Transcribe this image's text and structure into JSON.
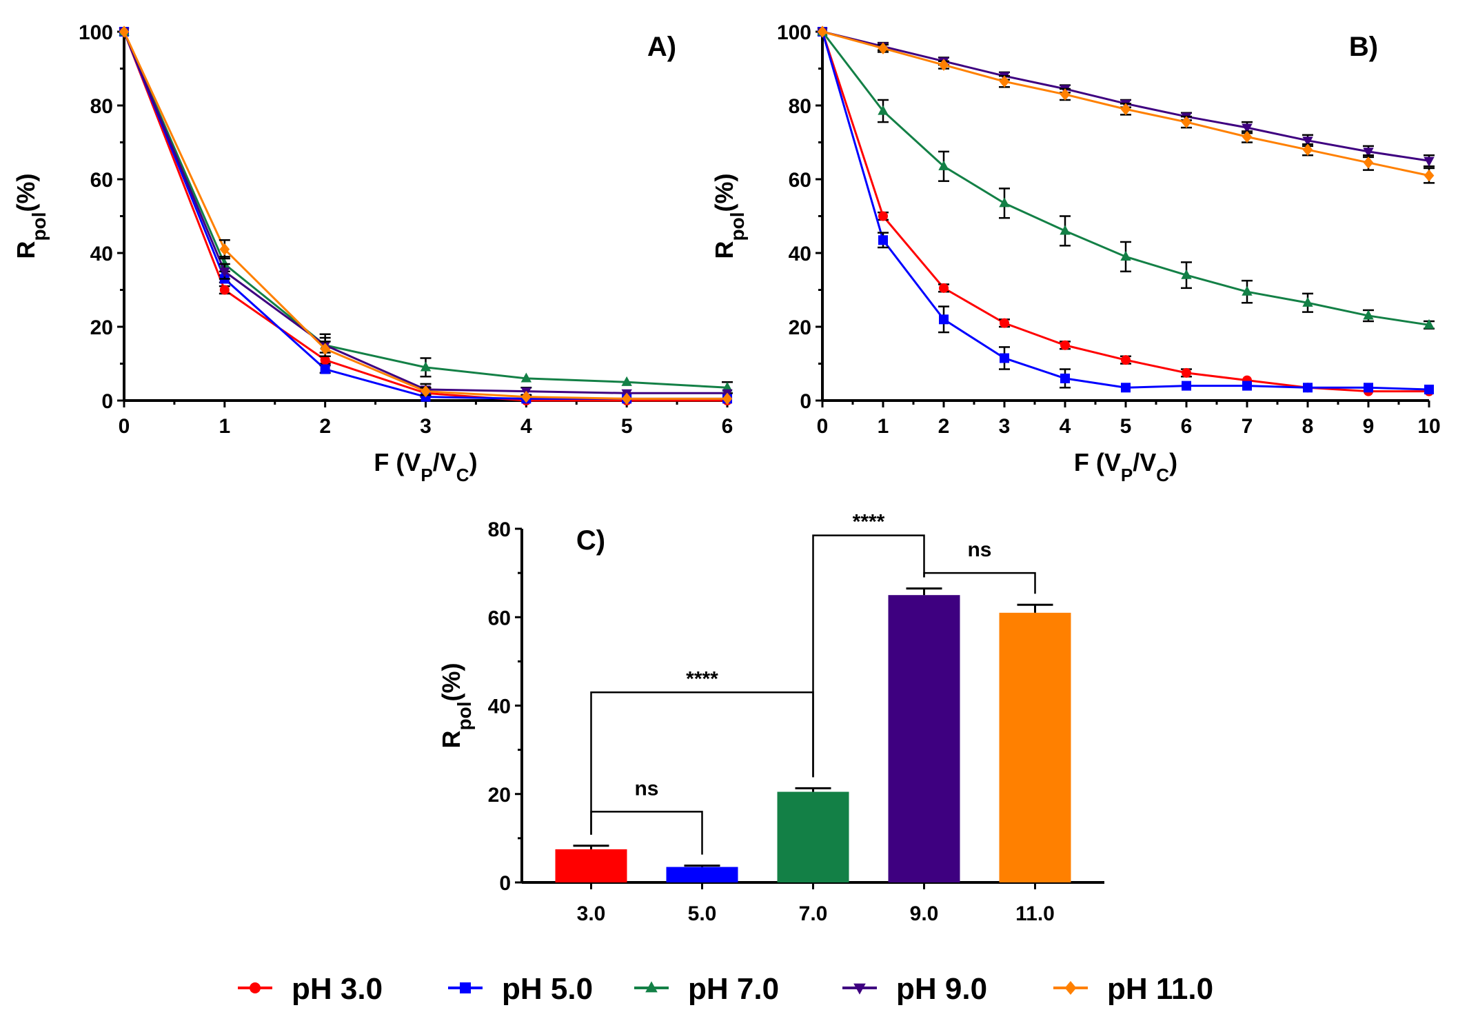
{
  "legend": [
    {
      "label": "pH 3.0",
      "color": "#ff0000",
      "marker": "circle"
    },
    {
      "label": "pH 5.0",
      "color": "#0000ff",
      "marker": "square"
    },
    {
      "label": "pH 7.0",
      "color": "#138046",
      "marker": "triangle-up"
    },
    {
      "label": "pH 9.0",
      "color": "#3e0080",
      "marker": "triangle-down"
    },
    {
      "label": "pH 11.0",
      "color": "#ff8000",
      "marker": "diamond"
    }
  ],
  "chart_data": [
    {
      "id": "A",
      "type": "line",
      "title": "A)",
      "xlabel": "F (VP/VC)",
      "ylabel": "Rpol(%)",
      "xlim": [
        0,
        6
      ],
      "ylim": [
        0,
        100
      ],
      "xticks": [
        0,
        1,
        2,
        3,
        4,
        5,
        6
      ],
      "yticks": [
        0,
        20,
        40,
        60,
        80,
        100
      ],
      "x": [
        0,
        1,
        2,
        3,
        4,
        5,
        6
      ],
      "series": [
        {
          "name": "pH 3.0",
          "values": [
            100,
            30,
            11,
            2,
            0,
            0,
            0
          ],
          "errors": [
            0,
            1,
            1,
            1,
            0.5,
            0.5,
            0.5
          ]
        },
        {
          "name": "pH 5.0",
          "values": [
            100,
            33,
            8.5,
            1,
            0.5,
            0.5,
            0.5
          ],
          "errors": [
            0,
            1,
            1,
            0.5,
            0.5,
            0.5,
            0.5
          ]
        },
        {
          "name": "pH 7.0",
          "values": [
            100,
            37,
            15,
            9,
            6,
            5,
            3.5
          ],
          "errors": [
            0,
            2,
            2,
            2.5,
            0.5,
            0.5,
            1.5
          ]
        },
        {
          "name": "pH 9.0",
          "values": [
            100,
            35,
            15,
            3,
            2.5,
            2,
            2
          ],
          "errors": [
            0,
            2,
            3,
            1.5,
            1,
            0.5,
            0.5
          ]
        },
        {
          "name": "pH 11.0",
          "values": [
            100,
            41,
            14,
            2.5,
            1,
            0.5,
            0.5
          ],
          "errors": [
            0,
            2.5,
            2,
            1,
            0.5,
            0.5,
            0.5
          ]
        }
      ]
    },
    {
      "id": "B",
      "type": "line",
      "title": "B)",
      "xlabel": "F (VP/VC)",
      "ylabel": "Rpol(%)",
      "xlim": [
        0,
        10
      ],
      "ylim": [
        0,
        100
      ],
      "xticks": [
        0,
        1,
        2,
        3,
        4,
        5,
        6,
        7,
        8,
        9,
        10
      ],
      "yticks": [
        0,
        20,
        40,
        60,
        80,
        100
      ],
      "x": [
        0,
        1,
        2,
        3,
        4,
        5,
        6,
        7,
        8,
        9,
        10
      ],
      "series": [
        {
          "name": "pH 3.0",
          "values": [
            100,
            50,
            30.5,
            21,
            15,
            11,
            7.5,
            5.5,
            3.5,
            2.5,
            2.5
          ],
          "errors": [
            0,
            1,
            1,
            1,
            1,
            1,
            1,
            0.5,
            0.5,
            0.5,
            0.5
          ]
        },
        {
          "name": "pH 5.0",
          "values": [
            100,
            43.5,
            22,
            11.5,
            6,
            3.5,
            4,
            4,
            3.5,
            3.5,
            3
          ],
          "errors": [
            0,
            2,
            3.5,
            3,
            2.5,
            0.5,
            0.5,
            0.5,
            0.5,
            0.5,
            0.5
          ]
        },
        {
          "name": "pH 7.0",
          "values": [
            100,
            78.5,
            63.5,
            53.5,
            46,
            39,
            34,
            29.5,
            26.5,
            23,
            20.5
          ],
          "errors": [
            0,
            3,
            4,
            4,
            4,
            4,
            3.5,
            3,
            2.5,
            1.5,
            1
          ]
        },
        {
          "name": "pH 9.0",
          "values": [
            100,
            96,
            92,
            88,
            84.5,
            80.5,
            77,
            74,
            70.5,
            67.5,
            65
          ],
          "errors": [
            0,
            1,
            1,
            1,
            1,
            1,
            1,
            1.5,
            1.5,
            1.5,
            1.5
          ]
        },
        {
          "name": "pH 11.0",
          "values": [
            100,
            95.5,
            91,
            86.5,
            83,
            79,
            75.5,
            71.5,
            68,
            64.5,
            61
          ],
          "errors": [
            0,
            1,
            1,
            1.5,
            1.5,
            1.5,
            1.5,
            1.5,
            1.5,
            2,
            2
          ]
        }
      ]
    },
    {
      "id": "C",
      "type": "bar",
      "title": "C)",
      "xlabel": "",
      "ylabel": "Rpol(%)",
      "ylim": [
        0,
        80
      ],
      "yticks": [
        0,
        20,
        40,
        60,
        80
      ],
      "categories": [
        "3.0",
        "5.0",
        "7.0",
        "9.0",
        "11.0"
      ],
      "values": [
        7.5,
        3.5,
        20.5,
        65,
        61
      ],
      "errors": [
        0.8,
        0.3,
        0.8,
        1.5,
        1.8
      ],
      "colors": [
        "#ff0000",
        "#0000ff",
        "#138046",
        "#3e0080",
        "#ff8000"
      ],
      "significance": [
        {
          "from": 0,
          "to": 1,
          "label": "ns",
          "y": 16
        },
        {
          "from": 0,
          "to": 2,
          "label": "****",
          "y": 43
        },
        {
          "from": 2,
          "to": 3,
          "label": "****",
          "y": 78.5
        },
        {
          "from": 3,
          "to": 4,
          "label": "ns",
          "y": 70
        }
      ]
    }
  ]
}
